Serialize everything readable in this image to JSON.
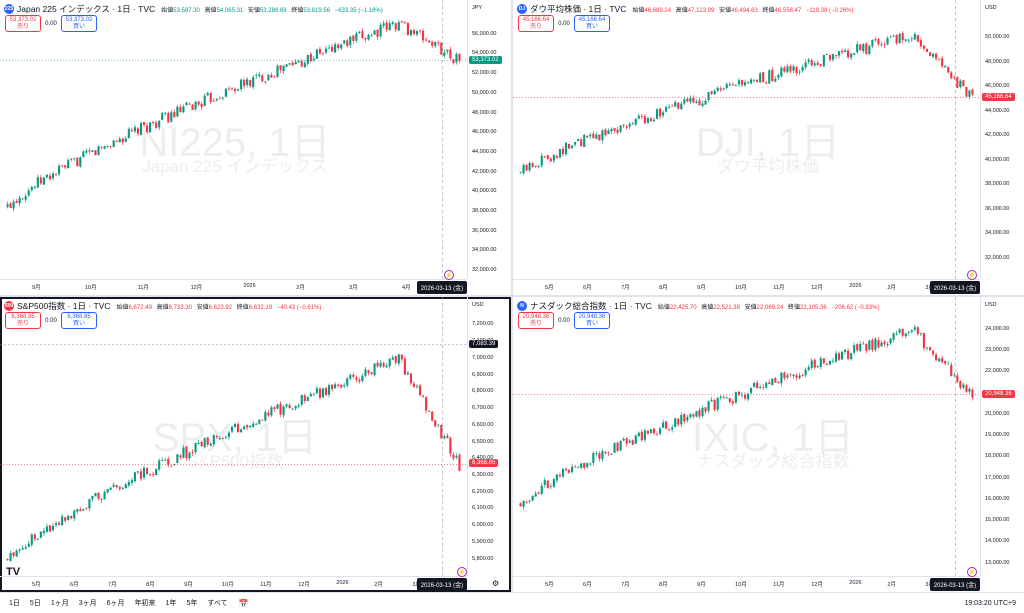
{
  "panes": [
    {
      "symbol": "Japan 225 インデックス · 1日 · TVC",
      "icon": "225",
      "icon_color": "#2962ff",
      "ohlc": {
        "o_label": "始値",
        "o": "53,587.30",
        "h_label": "高値",
        "h": "54,065.31",
        "l_label": "安値",
        "l": "53,286.69",
        "c_label": "終値",
        "c": "53,819.56",
        "chg": "−633.35 (−1.16%)",
        "dir": "up"
      },
      "sell": "53,373.02",
      "buy": "53,373.02",
      "spread": "0.00",
      "currency": "JPY",
      "price_labels": [
        "56,000.00",
        "54,000.00",
        "52,000.00",
        "50,000.00",
        "48,000.00",
        "46,000.00",
        "44,000.00",
        "42,000.00",
        "40,000.00",
        "38,000.00",
        "36,000.00",
        "34,000.00",
        "32,000.00"
      ],
      "current_price": "53,373.02",
      "current_color": "#089981",
      "months": [
        "9月",
        "10月",
        "11月",
        "12月",
        "2026",
        "2月",
        "3月",
        "4月"
      ],
      "date_label": "2026-03-13 (金)",
      "wm_big": "NI225, 1日",
      "wm_small": "Japan 225 インデックス",
      "chart_data": {
        "type": "candlestick",
        "title": "NI225, 1日",
        "y_range": [
          32000,
          57500
        ],
        "start": 38500,
        "end": 53373,
        "peak": 57200,
        "trend": "up",
        "up_color": "#089981",
        "down_color": "#f23645"
      }
    },
    {
      "symbol": "ダウ平均株価 · 1日 · TVC",
      "icon": "DJ",
      "icon_color": "#2962ff",
      "ohlc": {
        "o_label": "始値",
        "o": "46,689.24",
        "h_label": "高値",
        "h": "47,123.99",
        "l_label": "安値",
        "l": "46,494.63",
        "c_label": "終値",
        "c": "46,558.47",
        "chg": "−119.38 (−0.26%)",
        "dir": "down"
      },
      "sell": "45,166.64",
      "buy": "45,166.64",
      "spread": "0.00",
      "currency": "USD",
      "price_labels": [
        "50,000.00",
        "48,000.00",
        "46,000.00",
        "44,000.00",
        "42,000.00",
        "40,000.00",
        "38,000.00",
        "36,000.00",
        "34,000.00",
        "32,000.00"
      ],
      "current_price": "45,166.64",
      "current_color": "#f23645",
      "months": [
        "5月",
        "6月",
        "7月",
        "8月",
        "9月",
        "10月",
        "11月",
        "12月",
        "2026",
        "2月",
        "3月"
      ],
      "date_label": "2026-03-13 (金)",
      "wm_big": "DJI, 1日",
      "wm_small": "ダウ平均株価",
      "chart_data": {
        "type": "candlestick",
        "title": "DJI, 1日",
        "y_range": [
          31000,
          51500
        ],
        "start": 39000,
        "end": 45166,
        "peak": 50300,
        "trend": "up",
        "up_color": "#089981",
        "down_color": "#f23645"
      }
    },
    {
      "symbol": "S&P500指数 · 1日 · TVC",
      "icon": "500",
      "icon_color": "#f23645",
      "ohlc": {
        "o_label": "始値",
        "o": "6,672.49",
        "h_label": "高値",
        "h": "6,733.30",
        "l_label": "安値",
        "l": "6,623.92",
        "c_label": "終値",
        "c": "6,632.19",
        "chg": "−40.43 (−0.61%)",
        "dir": "down"
      },
      "sell": "6,368.85",
      "buy": "6,368.85",
      "spread": "0.00",
      "currency": "USD",
      "price_labels": [
        "7,200.00",
        "7,100.00",
        "7,000.00",
        "6,900.00",
        "6,800.00",
        "6,700.00",
        "6,600.00",
        "6,500.00",
        "6,400.00",
        "6,300.00",
        "6,200.00",
        "6,100.00",
        "6,000.00",
        "5,900.00",
        "5,800.00"
      ],
      "alert_price": "7,083.39",
      "current_price": "6,368.85",
      "current_color": "#f23645",
      "months": [
        "5月",
        "6月",
        "7月",
        "8月",
        "9月",
        "10月",
        "11月",
        "12月",
        "2026",
        "2月",
        "3月"
      ],
      "date_label": "2026-03-13 (金)",
      "wm_big": "SPX, 1日",
      "wm_small": "S&P500指数",
      "chart_data": {
        "type": "candlestick",
        "title": "SPX, 1日",
        "y_range": [
          5750,
          7250
        ],
        "start": 5800,
        "end": 6368,
        "peak": 7000,
        "trend": "up",
        "up_color": "#089981",
        "down_color": "#f23645"
      }
    },
    {
      "symbol": "ナスダック総合指数 · 1日 · TVC",
      "icon": "N",
      "icon_color": "#2962ff",
      "ohlc": {
        "o_label": "始値",
        "o": "22,425.70",
        "h_label": "高値",
        "h": "22,521.38",
        "l_label": "安値",
        "l": "22,069.24",
        "c_label": "終値",
        "c": "22,105.36",
        "chg": "−206.62 (−0.93%)",
        "dir": "down"
      },
      "sell": "20,948.36",
      "buy": "20,948.36",
      "spread": "0.00",
      "currency": "USD",
      "price_labels": [
        "24,000.00",
        "23,000.00",
        "22,000.00",
        "21,000.00",
        "20,000.00",
        "19,000.00",
        "18,000.00",
        "17,000.00",
        "16,000.00",
        "15,000.00",
        "14,000.00",
        "13,000.00"
      ],
      "current_price": "20,948.36",
      "current_color": "#f23645",
      "months": [
        "5月",
        "6月",
        "7月",
        "8月",
        "9月",
        "10月",
        "11月",
        "12月",
        "2026",
        "2月",
        "3月"
      ],
      "date_label": "2026-03-13 (金)",
      "wm_big": "IXIC, 1日",
      "wm_small": "ナスダック総合指数",
      "chart_data": {
        "type": "candlestick",
        "title": "IXIC, 1日",
        "y_range": [
          12800,
          24600
        ],
        "start": 15800,
        "end": 20948,
        "peak": 24000,
        "trend": "up",
        "up_color": "#089981",
        "down_color": "#f23645"
      }
    }
  ],
  "trade": {
    "sell_label": "売り",
    "buy_label": "買い"
  },
  "footer": {
    "ranges": [
      "1日",
      "5日",
      "1ヶ月",
      "3ヶ月",
      "6ヶ月",
      "年初来",
      "1年",
      "5年",
      "すべて"
    ],
    "clock": "19:03:20 UTC+9"
  },
  "logo": "TV"
}
